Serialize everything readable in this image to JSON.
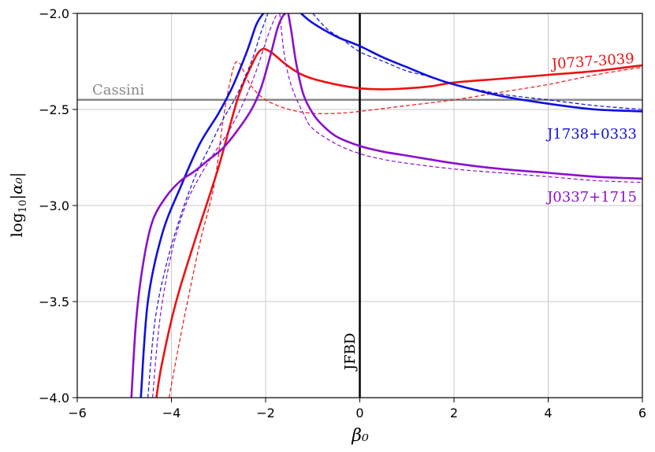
{
  "chart_data": {
    "type": "line",
    "title": "",
    "xlabel": "β₀",
    "ylabel_parts": {
      "base": "log",
      "sub": "10",
      "expr": "|α₀|"
    },
    "xlim": [
      -6,
      6
    ],
    "ylim": [
      -4.0,
      -2.0
    ],
    "xticks": [
      -6,
      -4,
      -2,
      0,
      2,
      4,
      6
    ],
    "yticks": [
      -4.0,
      -3.5,
      -3.0,
      -2.5,
      -2.0
    ],
    "xtick_labels": [
      "−6",
      "−4",
      "−2",
      "0",
      "2",
      "4",
      "6"
    ],
    "ytick_labels": [
      "−4.0",
      "−3.5",
      "−3.0",
      "−2.5",
      "−2.0"
    ],
    "grid": true,
    "colors": {
      "red": "#ee1111",
      "blue": "#1010dd",
      "purple": "#8a10cc",
      "gray": "#888888",
      "black": "#000000"
    },
    "hlines": [
      {
        "label": "Cassini",
        "y": -2.45,
        "color": "#888888"
      }
    ],
    "vlines": [
      {
        "label": "JFBD",
        "x": 0,
        "color": "#000000"
      }
    ],
    "series": [
      {
        "name": "J0737-3039",
        "color": "#ee1111",
        "style": "solid",
        "x": [
          -4.32,
          -4.2,
          -3.9,
          -3.5,
          -3.0,
          -2.6,
          -2.3,
          -2.1,
          -1.9,
          -1.6,
          -1.3,
          -1.0,
          -0.5,
          0,
          0.5,
          1,
          1.5,
          2,
          3,
          4,
          5,
          6
        ],
        "y": [
          -4.0,
          -3.82,
          -3.5,
          -3.18,
          -2.8,
          -2.45,
          -2.27,
          -2.19,
          -2.2,
          -2.26,
          -2.31,
          -2.34,
          -2.37,
          -2.39,
          -2.395,
          -2.39,
          -2.38,
          -2.36,
          -2.34,
          -2.32,
          -2.3,
          -2.27
        ]
      },
      {
        "name": "",
        "color": "#ee1111",
        "style": "dashed",
        "x": [
          -4.05,
          -3.9,
          -3.7,
          -3.4,
          -3.1,
          -2.9,
          -2.75,
          -2.65,
          -2.55,
          -2.45,
          -2.3,
          -2.0,
          -1.5,
          -1.0,
          -0.5,
          0,
          1,
          2,
          3,
          4,
          5,
          6
        ],
        "y": [
          -4.0,
          -3.8,
          -3.55,
          -3.2,
          -2.9,
          -2.55,
          -2.35,
          -2.26,
          -2.26,
          -2.31,
          -2.38,
          -2.45,
          -2.5,
          -2.52,
          -2.52,
          -2.51,
          -2.48,
          -2.45,
          -2.41,
          -2.37,
          -2.32,
          -2.28
        ]
      },
      {
        "name": "J1738+0333",
        "color": "#1010dd",
        "style": "solid",
        "x": [
          -4.65,
          -4.5,
          -4.2,
          -3.8,
          -3.4,
          -3.0,
          -2.7,
          -2.4,
          -2.2,
          -2.05
        ],
        "y": [
          -4.0,
          -3.5,
          -3.15,
          -2.9,
          -2.68,
          -2.52,
          -2.38,
          -2.2,
          -2.06,
          -2.0
        ]
      },
      {
        "name": "",
        "color": "#1010dd",
        "style": "solid",
        "x": [
          -1.25,
          -1.0,
          -0.5,
          0,
          0.5,
          1,
          1.5,
          2,
          3,
          4,
          5,
          6
        ],
        "y": [
          -2.0,
          -2.05,
          -2.12,
          -2.17,
          -2.23,
          -2.28,
          -2.33,
          -2.37,
          -2.43,
          -2.47,
          -2.5,
          -2.51
        ]
      },
      {
        "name": "",
        "color": "#1010dd",
        "style": "dashed",
        "x": [
          -4.5,
          -4.35,
          -4.1,
          -3.8,
          -3.5,
          -3.2,
          -2.9,
          -2.6,
          -2.3,
          -2.1,
          -1.95
        ],
        "y": [
          -4.0,
          -3.6,
          -3.3,
          -3.05,
          -2.85,
          -2.7,
          -2.55,
          -2.42,
          -2.25,
          -2.1,
          -2.0
        ]
      },
      {
        "name": "",
        "color": "#1010dd",
        "style": "dashed",
        "x": [
          -1.0,
          -0.7,
          -0.4,
          0,
          0.5,
          1,
          1.5,
          2,
          3,
          4,
          5,
          6
        ],
        "y": [
          -2.0,
          -2.08,
          -2.13,
          -2.2,
          -2.25,
          -2.3,
          -2.33,
          -2.37,
          -2.42,
          -2.45,
          -2.48,
          -2.5
        ]
      },
      {
        "name": "J0337+1715",
        "color": "#8a10cc",
        "style": "solid",
        "x": [
          -4.85,
          -4.75,
          -4.6,
          -4.4,
          -4.1,
          -3.8,
          -3.5,
          -3.2,
          -2.9,
          -2.6,
          -2.3,
          -2.1,
          -1.9,
          -1.75,
          -1.65,
          -1.58
        ],
        "y": [
          -4.0,
          -3.6,
          -3.3,
          -3.08,
          -2.95,
          -2.87,
          -2.82,
          -2.76,
          -2.7,
          -2.61,
          -2.5,
          -2.39,
          -2.22,
          -2.08,
          -2.02,
          -2.0
        ]
      },
      {
        "name": "",
        "color": "#8a10cc",
        "style": "solid",
        "x": [
          -1.52,
          -1.45,
          -1.35,
          -1.2,
          -1.0,
          -0.8,
          -0.5,
          0,
          0.5,
          1,
          2,
          3,
          4,
          5,
          6
        ],
        "y": [
          -2.0,
          -2.1,
          -2.26,
          -2.42,
          -2.52,
          -2.58,
          -2.64,
          -2.69,
          -2.72,
          -2.74,
          -2.78,
          -2.81,
          -2.83,
          -2.85,
          -2.86
        ]
      },
      {
        "name": "",
        "color": "#8a10cc",
        "style": "dashed",
        "x": [
          -4.4,
          -4.25,
          -4.0,
          -3.7,
          -3.4,
          -3.1,
          -2.8,
          -2.5,
          -2.2,
          -2.0,
          -1.85,
          -1.75
        ],
        "y": [
          -4.0,
          -3.6,
          -3.25,
          -3.0,
          -2.85,
          -2.73,
          -2.62,
          -2.48,
          -2.3,
          -2.15,
          -2.05,
          -2.0
        ]
      },
      {
        "name": "",
        "color": "#8a10cc",
        "style": "dashed",
        "x": [
          -1.7,
          -1.6,
          -1.45,
          -1.2,
          -1.0,
          -0.5,
          0,
          0.5,
          1,
          2,
          3,
          4,
          5,
          6
        ],
        "y": [
          -2.0,
          -2.22,
          -2.38,
          -2.52,
          -2.6,
          -2.68,
          -2.73,
          -2.76,
          -2.78,
          -2.81,
          -2.83,
          -2.85,
          -2.87,
          -2.88
        ]
      }
    ],
    "annotations": [
      {
        "text": "J0737-3039",
        "color": "#ee1111"
      },
      {
        "text": "J1738+0333",
        "color": "#1010dd"
      },
      {
        "text": "J0337+1715",
        "color": "#8a10cc"
      },
      {
        "text": "Cassini",
        "color": "#888888"
      },
      {
        "text": "JFBD",
        "color": "#000000"
      }
    ]
  }
}
